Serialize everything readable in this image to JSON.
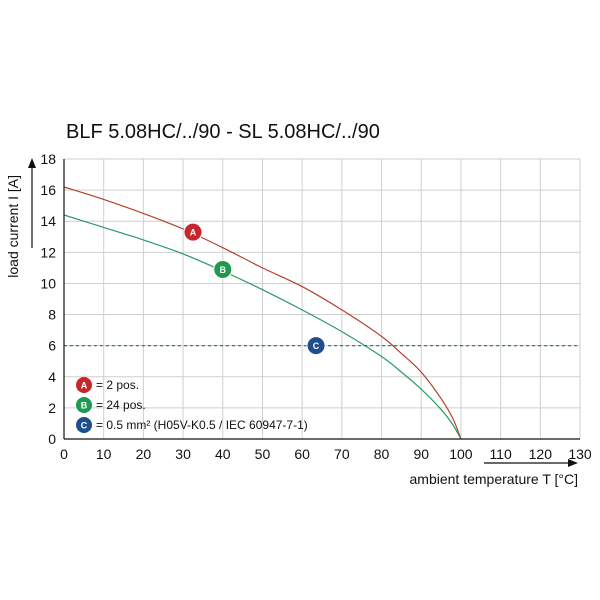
{
  "chart_data": {
    "type": "line",
    "title": "BLF 5.08HC/../90 - SL 5.08HC/../90",
    "xlabel": "ambient temperature T [°C]",
    "ylabel": "load current I [A]",
    "xlim": [
      0,
      130
    ],
    "ylim": [
      0,
      18
    ],
    "xticks": [
      0,
      10,
      20,
      30,
      40,
      50,
      60,
      70,
      80,
      90,
      100,
      110,
      120,
      130
    ],
    "yticks": [
      0,
      2,
      4,
      6,
      8,
      10,
      12,
      14,
      16,
      18
    ],
    "grid": true,
    "series": [
      {
        "name": "A",
        "color": "#b5402f",
        "x": [
          0,
          10,
          20,
          30,
          40,
          50,
          60,
          70,
          80,
          85,
          90,
          95,
          98,
          100
        ],
        "y": [
          16.2,
          15.4,
          14.5,
          13.5,
          12.3,
          11.0,
          9.8,
          8.3,
          6.6,
          5.5,
          4.3,
          2.6,
          1.3,
          0
        ]
      },
      {
        "name": "B",
        "color": "#2a9a63",
        "x": [
          0,
          10,
          20,
          30,
          40,
          50,
          60,
          70,
          80,
          85,
          90,
          95,
          98,
          100
        ],
        "y": [
          14.4,
          13.6,
          12.8,
          11.9,
          10.8,
          9.6,
          8.3,
          6.9,
          5.3,
          4.3,
          3.2,
          1.9,
          0.9,
          0
        ]
      },
      {
        "name": "C",
        "color": "#1f6a78",
        "style": "dashed",
        "x": [
          0,
          130
        ],
        "y": [
          6,
          6
        ]
      }
    ],
    "markers": [
      {
        "label": "A",
        "x": 32.5,
        "y": 13.3,
        "color": "#c8262d"
      },
      {
        "label": "B",
        "x": 40,
        "y": 10.9,
        "color": "#1e9a4f"
      },
      {
        "label": "C",
        "x": 63.5,
        "y": 6,
        "color": "#1f4e8c"
      }
    ],
    "legend": {
      "placement": "bottom-left",
      "entries": [
        {
          "label": "A",
          "text": "= 2 pos.",
          "color": "#c8262d"
        },
        {
          "label": "B",
          "text": "= 24 pos.",
          "color": "#1e9a4f"
        },
        {
          "label": "C",
          "text": "= 0.5 mm² (H05V-K0.5 / IEC 60947-7-1)",
          "color": "#1f4e8c"
        }
      ]
    }
  }
}
